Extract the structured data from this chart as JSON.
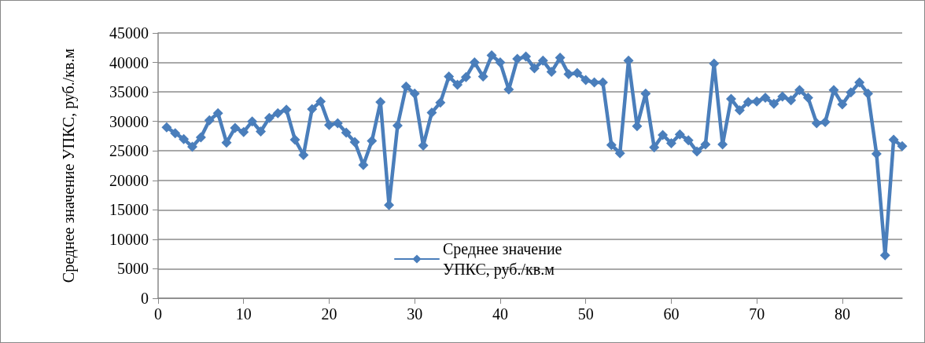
{
  "chart_data": {
    "type": "line",
    "ylabel": "Среднее значение УПКС, руб./кв.м",
    "x": [
      1,
      2,
      3,
      4,
      5,
      6,
      7,
      8,
      9,
      10,
      11,
      12,
      13,
      14,
      15,
      16,
      17,
      18,
      19,
      20,
      21,
      22,
      23,
      24,
      25,
      26,
      27,
      28,
      29,
      30,
      31,
      32,
      33,
      34,
      35,
      36,
      37,
      38,
      39,
      40,
      41,
      42,
      43,
      44,
      45,
      46,
      47,
      48,
      49,
      50,
      51,
      52,
      53,
      54,
      55,
      56,
      57,
      58,
      59,
      60,
      61,
      62,
      63,
      64,
      65,
      66,
      67,
      68,
      69,
      70,
      71,
      72,
      73,
      74,
      75,
      76,
      77,
      78,
      79,
      80,
      81,
      82,
      83,
      84,
      85,
      86,
      87
    ],
    "series": [
      {
        "name": "Среднее значение УПКС, руб./кв.м",
        "color": "#4a7ebb",
        "values": [
          29000,
          28000,
          27000,
          25700,
          27300,
          30200,
          31400,
          26400,
          28900,
          28200,
          30000,
          28300,
          30600,
          31400,
          32000,
          26900,
          24300,
          32100,
          33400,
          29400,
          29700,
          28100,
          26500,
          22600,
          26700,
          33300,
          15800,
          29300,
          35900,
          34700,
          25900,
          31500,
          33200,
          37600,
          36200,
          37500,
          40000,
          37600,
          41200,
          40000,
          35400,
          40600,
          41000,
          39000,
          40300,
          38400,
          40800,
          38000,
          38200,
          37000,
          36600,
          36600,
          26000,
          24600,
          40300,
          29200,
          34700,
          25600,
          27700,
          26300,
          27800,
          26800,
          24900,
          26100,
          39800,
          26100,
          33800,
          31900,
          33300,
          33400,
          34000,
          33000,
          34200,
          33600,
          35300,
          34000,
          29700,
          29900,
          35300,
          32900,
          34900,
          36600,
          34700,
          24500,
          7300,
          26900,
          25800
        ]
      }
    ],
    "xlim": [
      0,
      87
    ],
    "xticks": [
      0,
      10,
      20,
      30,
      40,
      50,
      60,
      70,
      80
    ],
    "ylim": [
      0,
      45000
    ],
    "yticks": [
      0,
      5000,
      10000,
      15000,
      20000,
      25000,
      30000,
      35000,
      40000,
      45000
    ],
    "grid": "y",
    "legend": "bottom",
    "marker": "diamond",
    "line_style": "solid"
  }
}
